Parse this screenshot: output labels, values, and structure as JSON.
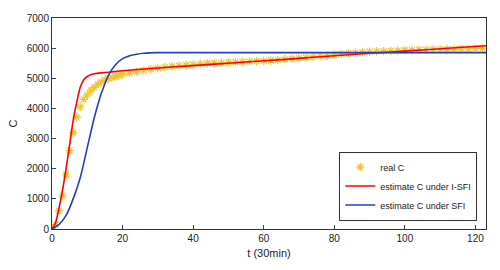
{
  "chart_data": {
    "type": "line",
    "x_label": "t (30min)",
    "y_label": "C",
    "xlim": [
      0,
      123
    ],
    "ylim": [
      0,
      7000
    ],
    "xticks": [
      0,
      20,
      40,
      60,
      80,
      100,
      120
    ],
    "yticks": [
      0,
      1000,
      2000,
      3000,
      4000,
      5000,
      6000,
      7000
    ],
    "grid": false,
    "legend": "bottom right",
    "series": [
      {
        "name": "real C",
        "type": "scatter",
        "marker": "asterisk",
        "color": "#f2c230",
        "x": [
          0,
          1,
          2,
          3,
          4,
          5,
          6,
          7,
          8,
          9,
          10,
          11,
          12,
          13,
          14,
          15,
          16,
          17,
          18,
          19,
          20,
          22,
          24,
          26,
          28,
          30,
          32,
          34,
          36,
          38,
          40,
          42,
          44,
          46,
          48,
          50,
          52,
          54,
          56,
          58,
          60,
          62,
          64,
          66,
          68,
          70,
          72,
          74,
          76,
          78,
          80,
          82,
          84,
          86,
          88,
          90,
          92,
          94,
          96,
          98,
          100,
          102,
          104,
          106,
          108,
          110,
          112,
          114,
          116,
          118,
          120,
          122
        ],
        "values": [
          0,
          150,
          600,
          1100,
          1800,
          2600,
          3200,
          3700,
          4050,
          4300,
          4450,
          4600,
          4700,
          4800,
          4880,
          4950,
          5000,
          5030,
          5060,
          5100,
          5130,
          5170,
          5220,
          5260,
          5300,
          5340,
          5370,
          5400,
          5420,
          5440,
          5460,
          5480,
          5500,
          5510,
          5520,
          5530,
          5540,
          5550,
          5560,
          5570,
          5580,
          5590,
          5610,
          5630,
          5650,
          5670,
          5690,
          5710,
          5730,
          5750,
          5780,
          5810,
          5830,
          5850,
          5870,
          5880,
          5890,
          5900,
          5910,
          5920,
          5930,
          5940,
          5950,
          5950,
          5960,
          5960,
          5970,
          5970,
          5980,
          5980,
          5990,
          5990
        ]
      },
      {
        "name": "estimate C under I-SFI",
        "type": "line",
        "line_style": "solid",
        "color": "#ff0000",
        "x": [
          0,
          1,
          2,
          3,
          4,
          5,
          6,
          7,
          8,
          9,
          10,
          11,
          12,
          14,
          16,
          20,
          30,
          40,
          50,
          60,
          70,
          80,
          90,
          100,
          110,
          123
        ],
        "values": [
          0,
          200,
          700,
          1300,
          2000,
          2800,
          3600,
          4200,
          4700,
          4950,
          5060,
          5120,
          5150,
          5180,
          5200,
          5250,
          5340,
          5420,
          5500,
          5580,
          5660,
          5750,
          5830,
          5900,
          5980,
          6080
        ]
      },
      {
        "name": "estimate C under SFI",
        "type": "line",
        "line_style": "solid",
        "color": "#2040c0",
        "x": [
          0,
          2,
          4,
          6,
          8,
          10,
          12,
          14,
          16,
          18,
          20,
          22,
          24,
          26,
          30,
          40,
          123
        ],
        "values": [
          0,
          150,
          450,
          1000,
          1700,
          2700,
          3700,
          4500,
          5100,
          5450,
          5650,
          5750,
          5800,
          5830,
          5850,
          5850,
          5850
        ]
      }
    ]
  }
}
